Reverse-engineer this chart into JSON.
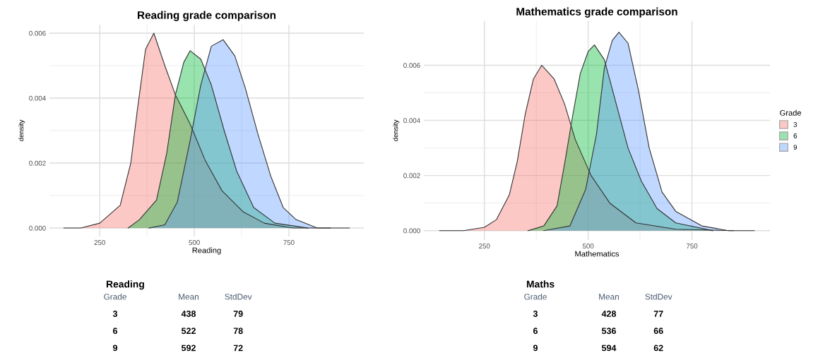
{
  "chart_data": [
    {
      "type": "area",
      "title": "Reading grade comparison",
      "xlabel": "Reading",
      "ylabel": "density",
      "xlim": [
        117,
        948
      ],
      "ylim": [
        -0.00026,
        0.00626
      ],
      "xticks": [
        250,
        500,
        750
      ],
      "yticks": [
        {
          "value": 0,
          "label": "0.000"
        },
        {
          "value": 0.002,
          "label": "0.002"
        },
        {
          "value": 0.004,
          "label": "0.004"
        },
        {
          "value": 0.006,
          "label": "0.006"
        }
      ],
      "grid": true,
      "legend": false,
      "series": [
        {
          "color": "#f8766d",
          "x": [
            155,
            200,
            250,
            304,
            332,
            349,
            371,
            393,
            422,
            450,
            489,
            528,
            573,
            629,
            685,
            760,
            860
          ],
          "values": [
            0,
            0,
            0.00015,
            0.0007,
            0.002,
            0.0036,
            0.0055,
            0.006,
            0.005,
            0.0041,
            0.0032,
            0.0021,
            0.00115,
            0.0005,
            0.00015,
            0,
            0
          ]
        },
        {
          "color": "#00ba38",
          "x": [
            325,
            355,
            400,
            427,
            450,
            472,
            489,
            517,
            545,
            579,
            612,
            657,
            713,
            800
          ],
          "values": [
            0,
            0.00026,
            0.00086,
            0.0023,
            0.0041,
            0.0051,
            0.00546,
            0.0052,
            0.0044,
            0.003,
            0.00175,
            0.00063,
            0.00015,
            0
          ]
        },
        {
          "color": "#619cff",
          "x": [
            380,
            422,
            455,
            489,
            517,
            545,
            576,
            607,
            635,
            668,
            702,
            735,
            769,
            825,
            910
          ],
          "values": [
            0,
            0.0001,
            0.0008,
            0.0027,
            0.0044,
            0.0056,
            0.0058,
            0.0053,
            0.0043,
            0.0029,
            0.0016,
            0.00063,
            0.00026,
            0,
            0
          ]
        }
      ]
    },
    {
      "type": "area",
      "title": "Mathematics grade comparison",
      "xlabel": "Mathematics",
      "ylabel": "density",
      "legend_title": "Grade",
      "xlim": [
        104,
        938
      ],
      "ylim": [
        -0.00034,
        0.0076
      ],
      "xticks": [
        250,
        500,
        750
      ],
      "yticks": [
        {
          "value": 0,
          "label": "0.000"
        },
        {
          "value": 0.002,
          "label": "0.002"
        },
        {
          "value": 0.004,
          "label": "0.004"
        },
        {
          "value": 0.006,
          "label": "0.006"
        }
      ],
      "grid": true,
      "legend": "right",
      "series": [
        {
          "name": "3",
          "color": "#f8766d",
          "x": [
            142,
            200,
            250,
            279,
            310,
            329,
            348,
            368,
            388,
            418,
            443,
            469,
            507,
            552,
            615,
            711,
            850
          ],
          "values": [
            0,
            0,
            0.00012,
            0.0004,
            0.0013,
            0.0025,
            0.0042,
            0.0055,
            0.006,
            0.0055,
            0.0046,
            0.0033,
            0.002,
            0.001,
            0.00028,
            5e-05,
            0
          ]
        },
        {
          "name": "6",
          "color": "#00ba38",
          "x": [
            355,
            393,
            425,
            444,
            463,
            481,
            500,
            515,
            539,
            564,
            596,
            628,
            666,
            711,
            800
          ],
          "values": [
            0,
            0.00017,
            0.0009,
            0.0025,
            0.0042,
            0.0057,
            0.0065,
            0.00674,
            0.0062,
            0.0048,
            0.003,
            0.0018,
            0.0008,
            0.00028,
            0
          ]
        },
        {
          "name": "9",
          "color": "#619cff",
          "x": [
            393,
            456,
            494,
            520,
            539,
            558,
            574,
            596,
            621,
            647,
            678,
            711,
            774,
            838,
            900
          ],
          "values": [
            0,
            0.00017,
            0.0015,
            0.0035,
            0.0059,
            0.0069,
            0.0072,
            0.0068,
            0.0051,
            0.003,
            0.0014,
            0.0007,
            0.00017,
            0,
            0
          ]
        }
      ]
    },
    {
      "type": "other",
      "title": "Reading",
      "annotations": [
        "Grade",
        "Mean",
        "StdDev",
        "3",
        "438",
        "79",
        "6",
        "522",
        "78",
        "9",
        "592",
        "72"
      ]
    },
    {
      "type": "other",
      "title": "Maths",
      "annotations": [
        "Grade",
        "Mean",
        "StdDev",
        "3",
        "428",
        "77",
        "6",
        "536",
        "66",
        "9",
        "594",
        "62"
      ]
    }
  ]
}
